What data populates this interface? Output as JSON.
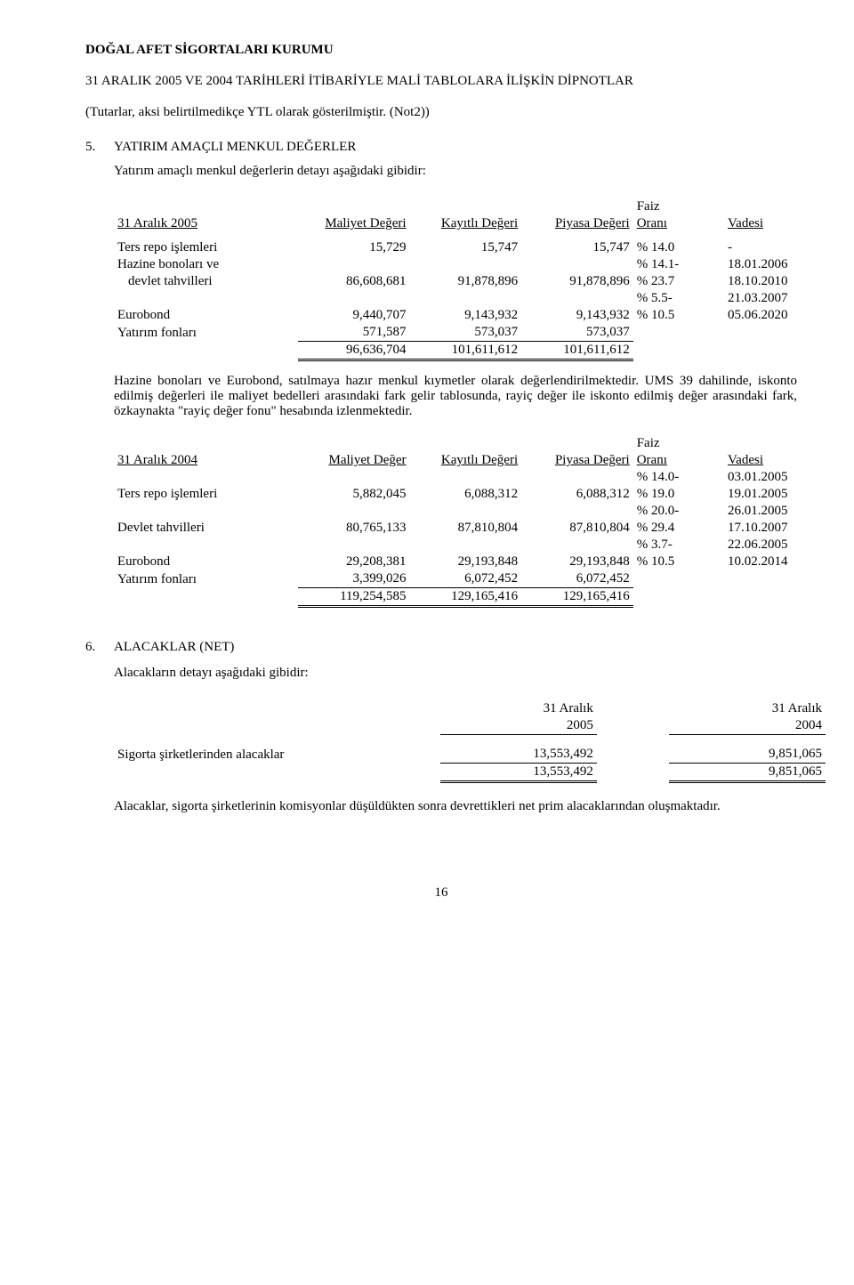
{
  "header": {
    "org": "DOĞAL AFET SİGORTALARI KURUMU",
    "line2": "31 ARALIK 2005 VE 2004 TARİHLERİ İTİBARİYLE MALİ TABLOLARA İLİŞKİN DİPNOTLAR",
    "line3": "(Tutarlar, aksi belirtilmedikçe YTL olarak gösterilmiştir. (Not2))"
  },
  "sec5": {
    "num": "5.",
    "title": "YATIRIM AMAÇLI MENKUL DEĞERLER",
    "intro": "Yatırım amaçlı menkul değerlerin detayı aşağıdaki gibidir:",
    "t1": {
      "h_date": "31 Aralık 2005",
      "h_cost": "Maliyet Değeri",
      "h_reg": "Kayıtlı Değeri",
      "h_mkt": "Piyasa Değeri",
      "h_rate_top": "Faiz",
      "h_rate": "Oranı",
      "h_mat": "Vadesi",
      "rows": [
        {
          "label": "Ters repo işlemleri",
          "c": "15,729",
          "r": "15,747",
          "m": "15,747",
          "rt": "% 14.0",
          "ma": "-"
        },
        {
          "label": "Hazine    bonoları    ve",
          "c": "",
          "r": "",
          "m": "",
          "rt": "% 14.1-",
          "ma": "18.01.2006"
        },
        {
          "label": "  devlet tahvilleri",
          "c": "86,608,681",
          "r": "91,878,896",
          "m": "91,878,896",
          "rt": "% 23.7",
          "ma": "18.10.2010"
        },
        {
          "label": "",
          "c": "",
          "r": "",
          "m": "",
          "rt": "% 5.5-",
          "ma": "21.03.2007"
        },
        {
          "label": "Eurobond",
          "c": "9,440,707",
          "r": "9,143,932",
          "m": "9,143,932",
          "rt": "% 10.5",
          "ma": "05.06.2020"
        },
        {
          "label": "Yatırım fonları",
          "c": "571,587",
          "r": "573,037",
          "m": "573,037",
          "rt": "",
          "ma": ""
        }
      ],
      "total": {
        "c": "96,636,704",
        "r": "101,611,612",
        "m": "101,611,612"
      }
    },
    "para": "Hazine bonoları ve Eurobond, satılmaya hazır menkul kıymetler olarak değerlendirilmektedir. UMS 39 dahilinde, iskonto edilmiş değerleri ile maliyet bedelleri arasındaki fark gelir tablosunda, rayiç değer ile iskonto edilmiş değer arasındaki fark, özkaynakta \"rayiç değer fonu\" hesabında izlenmektedir.",
    "t2": {
      "h_date": "31 Aralık 2004",
      "h_cost": "Maliyet Değer",
      "h_reg": "Kayıtlı Değeri",
      "h_mkt": "Piyasa Değeri",
      "h_rate_top": "Faiz",
      "h_rate": "Oranı",
      "h_mat": "Vadesi",
      "rows": [
        {
          "label": "",
          "c": "",
          "r": "",
          "m": "",
          "rt": "% 14.0-",
          "ma": "03.01.2005"
        },
        {
          "label": "Ters repo işlemleri",
          "c": "5,882,045",
          "r": "6,088,312",
          "m": "6,088,312",
          "rt": "% 19.0",
          "ma": "19.01.2005"
        },
        {
          "label": "",
          "c": "",
          "r": "",
          "m": "",
          "rt": "% 20.0-",
          "ma": "26.01.2005"
        },
        {
          "label": "Devlet tahvilleri",
          "c": "80,765,133",
          "r": "87,810,804",
          "m": "87,810,804",
          "rt": "% 29.4",
          "ma": "17.10.2007"
        },
        {
          "label": "",
          "c": "",
          "r": "",
          "m": "",
          "rt": "% 3.7-",
          "ma": "22.06.2005"
        },
        {
          "label": "Eurobond",
          "c": "29,208,381",
          "r": "29,193,848",
          "m": "29,193,848",
          "rt": "% 10.5",
          "ma": "10.02.2014"
        },
        {
          "label": "Yatırım fonları",
          "c": "3,399,026",
          "r": "6,072,452",
          "m": "6,072,452",
          "rt": "",
          "ma": ""
        }
      ],
      "total": {
        "c": "119,254,585",
        "r": "129,165,416",
        "m": "129,165,416"
      }
    }
  },
  "sec6": {
    "num": "6.",
    "title": "ALACAKLAR (NET)",
    "intro": "Alacakların detayı aşağıdaki gibidir:",
    "t": {
      "h1_top": "31 Aralık",
      "h1": "2005",
      "h2_top": "31 Aralık",
      "h2": "2004",
      "row_label": "Sigorta şirketlerinden alacaklar",
      "row_v1": "13,553,492",
      "row_v2": "9,851,065",
      "tot_v1": "13,553,492",
      "tot_v2": "9,851,065"
    },
    "para": "Alacaklar,  sigorta  şirketlerinin  komisyonlar  düşüldükten  sonra  devrettikleri  net  prim alacaklarından oluşmaktadır."
  },
  "page": "16"
}
